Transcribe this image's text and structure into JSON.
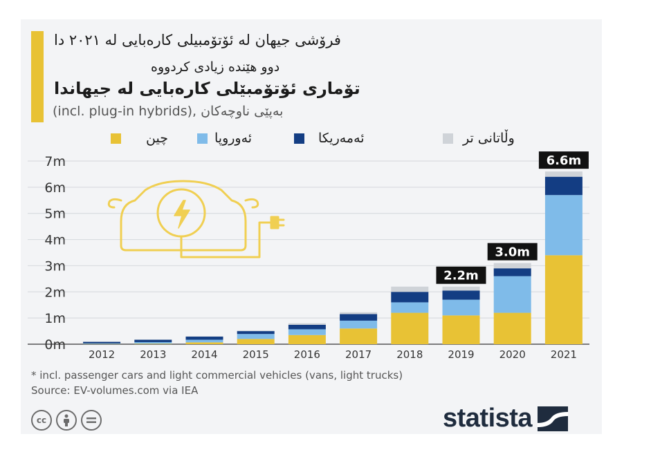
{
  "header": {
    "title_line1": "فرۆشی جیهان لە ئۆتۆمبیلی کارەبایی لە ٢٠٢١ دا",
    "title_line2": "دوو هێندە زیادی کردووە",
    "title_line3": "تۆماری ئۆتۆمبێلی کارەبایی لە جیهاندا",
    "subtitle": "(incl. plug-in hybrids), بەپێی ناوچەکان"
  },
  "legend": [
    {
      "label": "چین",
      "color": "#e8c235"
    },
    {
      "label": "ئەوروپا",
      "color": "#7fbbe9"
    },
    {
      "label": "ئەمەریکا",
      "color": "#133d83"
    },
    {
      "label": "وڵاتانی تر",
      "color": "#cfd3d8"
    }
  ],
  "chart_data": {
    "type": "bar",
    "stacked": true,
    "categories": [
      "2012",
      "2013",
      "2014",
      "2015",
      "2016",
      "2017",
      "2018",
      "2019",
      "2020",
      "2021"
    ],
    "series": [
      {
        "name": "چین",
        "color": "#e8c235",
        "values": [
          0.01,
          0.02,
          0.07,
          0.2,
          0.35,
          0.6,
          1.2,
          1.1,
          1.2,
          3.4
        ]
      },
      {
        "name": "ئەوروپا",
        "color": "#7fbbe9",
        "values": [
          0.02,
          0.06,
          0.1,
          0.19,
          0.22,
          0.3,
          0.4,
          0.6,
          1.4,
          2.3
        ]
      },
      {
        "name": "ئەمەریکا",
        "color": "#133d83",
        "values": [
          0.06,
          0.09,
          0.12,
          0.11,
          0.17,
          0.25,
          0.4,
          0.35,
          0.3,
          0.7
        ]
      },
      {
        "name": "وڵاتانی تر",
        "color": "#cfd3d8",
        "values": [
          0.01,
          0.01,
          0.01,
          0.02,
          0.06,
          0.07,
          0.2,
          0.15,
          0.2,
          0.2
        ]
      }
    ],
    "ylim": [
      0,
      7
    ],
    "yticks": [
      0,
      1,
      2,
      3,
      4,
      5,
      6,
      7
    ],
    "ytick_labels": [
      "0m",
      "1m",
      "2m",
      "3m",
      "4m",
      "5m",
      "6m",
      "7m"
    ],
    "callouts": [
      {
        "category": "2019",
        "label": "2.2m"
      },
      {
        "category": "2020",
        "label": "3.0m"
      },
      {
        "category": "2021",
        "label": "6.6m"
      }
    ]
  },
  "footer": {
    "footnote": "* incl. passenger cars and light commercial vehicles (vans, light trucks)",
    "source": "Source: EV-volumes.com via IEA",
    "cc_icons": [
      "cc",
      "by",
      "nd"
    ],
    "brand": "statista"
  }
}
